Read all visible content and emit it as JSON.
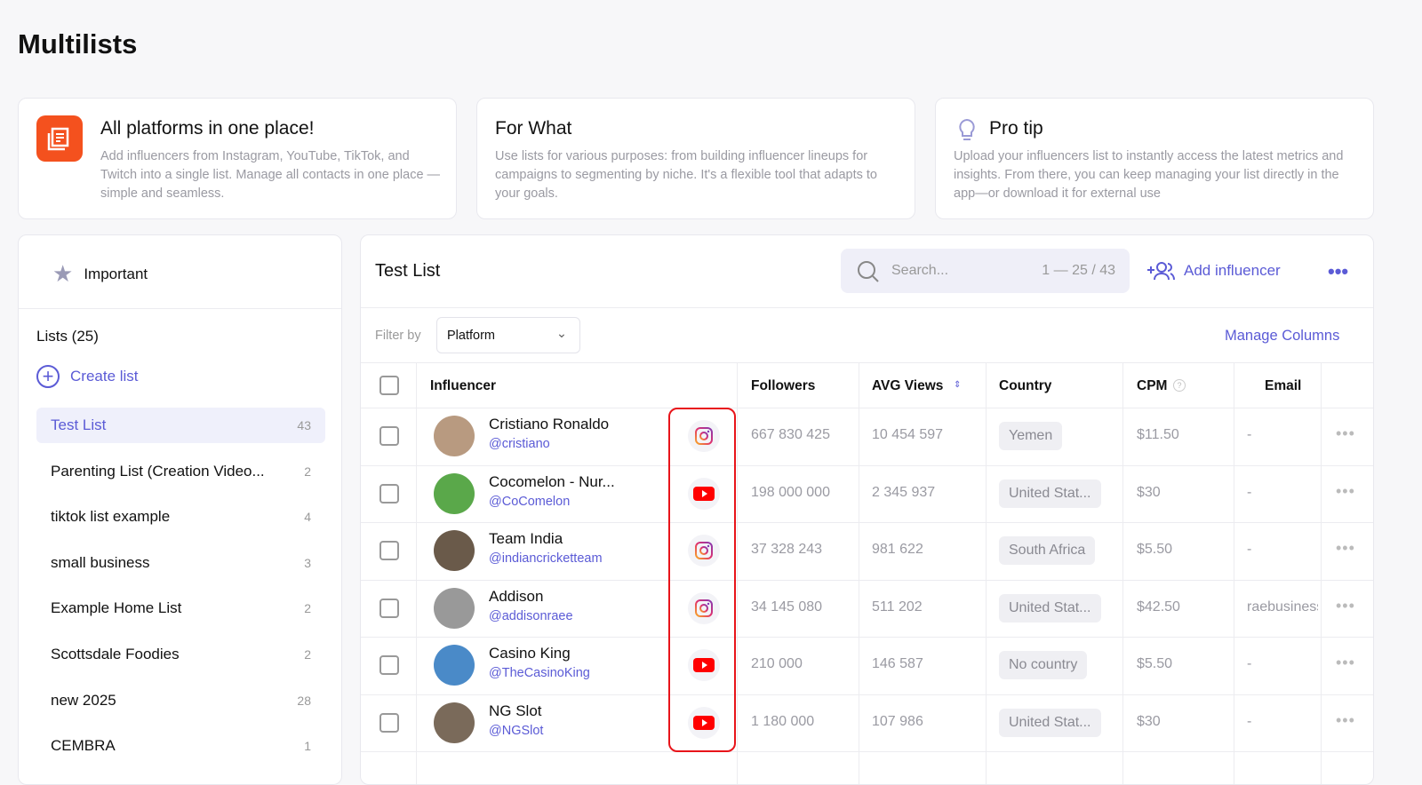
{
  "page_title": "Multilists",
  "cards": [
    {
      "title": "All platforms in one place!",
      "text": "Add influencers from Instagram, YouTube, TikTok, and Twitch into a single list. Manage all contacts in one place — simple and seamless.",
      "icon": "lists-icon"
    },
    {
      "title": "For What",
      "text": "Use lists for various purposes: from building influencer lineups for campaigns to segmenting by niche. It's a flexible tool that adapts to your goals."
    },
    {
      "title": "Pro tip",
      "text": "Upload your influencers list to instantly access the latest metrics and insights. From there, you can keep managing your list directly in the app—or download it for external use",
      "icon": "lightbulb-icon"
    }
  ],
  "sidebar": {
    "important": "Important",
    "lists_heading": "Lists (25)",
    "create": "Create list",
    "items": [
      {
        "label": "Test List",
        "count": "43"
      },
      {
        "label": "Parenting List (Creation Video...",
        "count": "2"
      },
      {
        "label": "tiktok list example",
        "count": "4"
      },
      {
        "label": "small business",
        "count": "3"
      },
      {
        "label": "Example Home List",
        "count": "2"
      },
      {
        "label": "Scottsdale Foodies",
        "count": "2"
      },
      {
        "label": "new 2025",
        "count": "28"
      },
      {
        "label": "CEMBRA",
        "count": "1"
      }
    ]
  },
  "main": {
    "title": "Test List",
    "search_placeholder": "Search...",
    "pagination": "1 — 25 / 43",
    "add": "Add influencer",
    "filter_label": "Filter by",
    "filter_value": "Platform",
    "manage": "Manage Columns",
    "columns": [
      "Influencer",
      "Followers",
      "AVG Views",
      "Country",
      "CPM",
      "Email"
    ],
    "rows": [
      {
        "name": "Cristiano Ronaldo",
        "handle": "@cristiano",
        "platform": "instagram",
        "followers": "667 830 425",
        "views": "10 454 597",
        "country": "Yemen",
        "cpm": "$11.50",
        "email": "-",
        "avatar": "#b89a80"
      },
      {
        "name": "Cocomelon - Nur...",
        "handle": "@CoComelon",
        "platform": "youtube",
        "followers": "198 000 000",
        "views": "2 345 937",
        "country": "United Stat...",
        "cpm": "$30",
        "email": "-",
        "avatar": "#5aa84a"
      },
      {
        "name": "Team India",
        "handle": "@indiancricketteam",
        "platform": "instagram",
        "followers": "37 328 243",
        "views": "981 622",
        "country": "South Africa",
        "cpm": "$5.50",
        "email": "-",
        "avatar": "#6a5a4a"
      },
      {
        "name": "Addison",
        "handle": "@addisonraee",
        "platform": "instagram",
        "followers": "34 145 080",
        "views": "511 202",
        "country": "United Stat...",
        "cpm": "$42.50",
        "email": "raebusiness",
        "avatar": "#999"
      },
      {
        "name": "Casino King",
        "handle": "@TheCasinoKing",
        "platform": "youtube",
        "followers": "210 000",
        "views": "146 587",
        "country": "No country",
        "cpm": "$5.50",
        "email": "-",
        "avatar": "#4a8ac8"
      },
      {
        "name": "NG Slot",
        "handle": "@NGSlot",
        "platform": "youtube",
        "followers": "1 180 000",
        "views": "107 986",
        "country": "United Stat...",
        "cpm": "$30",
        "email": "-",
        "avatar": "#7a6a5a"
      }
    ]
  },
  "colors": {
    "accent": "#5b5bd6",
    "orange": "#f4511e",
    "highlight": "#e8141a",
    "youtube": "#ff0000"
  }
}
